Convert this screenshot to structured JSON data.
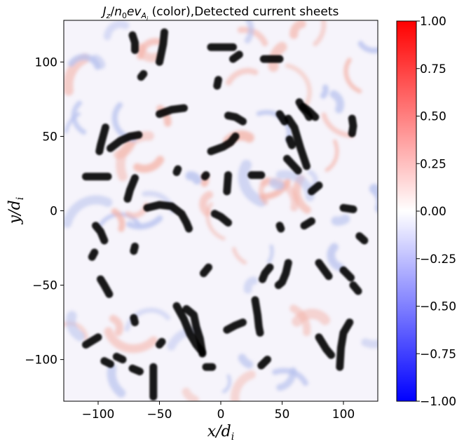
{
  "chart_data": {
    "type": "heatmap",
    "title": {
      "prefix_symbol": "J",
      "prefix_sub": "z",
      "slash": "/",
      "denominator_base": "n",
      "denominator_sub": "0",
      "denominator_mid": "ev",
      "denominator_sub2": "A",
      "denominator_sub3": "i",
      "suffix": " (color),Detected current sheets"
    },
    "xlabel": {
      "base": "x/d",
      "sub": "i"
    },
    "ylabel": {
      "base": "y/d",
      "sub": "i"
    },
    "xlim": [
      -128,
      128
    ],
    "ylim": [
      -128,
      128
    ],
    "xticks": [
      -100,
      -50,
      0,
      50,
      100
    ],
    "xtick_labels": [
      "−100",
      "−50",
      "0",
      "50",
      "100"
    ],
    "yticks": [
      -100,
      -50,
      0,
      50,
      100
    ],
    "ytick_labels": [
      "−100",
      "−50",
      "0",
      "50",
      "100"
    ],
    "colorbar": {
      "colormap": "bwr",
      "vmin": -1.0,
      "vmax": 1.0,
      "ticks": [
        1.0,
        0.75,
        0.5,
        0.25,
        0.0,
        -0.25,
        -0.5,
        -0.75,
        -1.0
      ],
      "tick_labels": [
        "1.00",
        "0.75",
        "0.50",
        "0.25",
        "0.00",
        "−0.25",
        "−0.50",
        "−0.75",
        "−1.00"
      ],
      "color_high": "#ff0000",
      "color_mid": "#ffffff",
      "color_low": "#0000ff"
    },
    "sheet_color": "#000000",
    "current_sheets": [
      [
        [
          -72,
          118
        ],
        [
          -70,
          113
        ],
        [
          -70,
          108
        ]
      ],
      [
        [
          -46,
          120
        ],
        [
          -47,
          112
        ],
        [
          -50,
          100
        ]
      ],
      [
        [
          -8,
          110
        ],
        [
          10,
          110
        ]
      ],
      [
        [
          15,
          105
        ],
        [
          10,
          102
        ]
      ],
      [
        [
          35,
          102
        ],
        [
          48,
          102
        ]
      ],
      [
        [
          -63,
          92
        ],
        [
          -65,
          90
        ]
      ],
      [
        [
          -2,
          88
        ],
        [
          -3,
          84
        ]
      ],
      [
        [
          -50,
          65
        ],
        [
          -40,
          68
        ],
        [
          -30,
          69
        ]
      ],
      [
        [
          -94,
          56
        ],
        [
          -96,
          50
        ],
        [
          -98,
          44
        ],
        [
          -99,
          40
        ]
      ],
      [
        [
          -90,
          42
        ],
        [
          -82,
          47
        ],
        [
          -74,
          50
        ],
        [
          -67,
          51
        ]
      ],
      [
        [
          6,
          64
        ],
        [
          12,
          63
        ],
        [
          18,
          60
        ]
      ],
      [
        [
          -8,
          40
        ],
        [
          2,
          43
        ],
        [
          8,
          46
        ],
        [
          12,
          50
        ]
      ],
      [
        [
          -110,
          23
        ],
        [
          -92,
          23
        ]
      ],
      [
        [
          -70,
          22
        ],
        [
          -74,
          14
        ],
        [
          -76,
          8
        ]
      ],
      [
        [
          -13,
          23
        ],
        [
          -12,
          24
        ]
      ],
      [
        [
          6,
          24
        ],
        [
          5,
          13
        ]
      ],
      [
        [
          25,
          24
        ],
        [
          33,
          24
        ]
      ],
      [
        [
          56,
          48
        ],
        [
          58,
          44
        ]
      ],
      [
        [
          64,
          73
        ],
        [
          66,
          70
        ],
        [
          70,
          66
        ],
        [
          72,
          63
        ]
      ],
      [
        [
          67,
          70
        ],
        [
          72,
          67
        ],
        [
          77,
          63
        ]
      ],
      [
        [
          55,
          62
        ],
        [
          60,
          56
        ],
        [
          65,
          42
        ],
        [
          70,
          30
        ]
      ],
      [
        [
          48,
          65
        ],
        [
          52,
          60
        ]
      ],
      [
        [
          54,
          35
        ],
        [
          63,
          27
        ]
      ],
      [
        [
          80,
          17
        ],
        [
          74,
          13
        ]
      ],
      [
        [
          107,
          62
        ],
        [
          108,
          57
        ],
        [
          107,
          52
        ]
      ],
      [
        [
          -35,
          28
        ],
        [
          -36,
          26
        ]
      ],
      [
        [
          -60,
          2
        ],
        [
          -50,
          4
        ],
        [
          -40,
          3
        ],
        [
          -32,
          -2
        ],
        [
          -28,
          -8
        ],
        [
          -26,
          -12
        ]
      ],
      [
        [
          -5,
          -2
        ],
        [
          0,
          -4
        ],
        [
          6,
          -8
        ]
      ],
      [
        [
          48,
          -10
        ],
        [
          49,
          -12
        ]
      ],
      [
        [
          68,
          -10
        ],
        [
          74,
          -7
        ]
      ],
      [
        [
          100,
          2
        ],
        [
          108,
          1
        ]
      ],
      [
        [
          117,
          -20
        ],
        [
          113,
          -17
        ]
      ],
      [
        [
          -102,
          -10
        ],
        [
          -98,
          -14
        ],
        [
          -95,
          -20
        ]
      ],
      [
        [
          -105,
          -31
        ],
        [
          -103,
          -28
        ]
      ],
      [
        [
          -70,
          -24
        ],
        [
          -71,
          -27
        ]
      ],
      [
        [
          -98,
          -46
        ],
        [
          -95,
          -50
        ],
        [
          -91,
          -56
        ]
      ],
      [
        [
          -10,
          -38
        ],
        [
          -14,
          -42
        ]
      ],
      [
        [
          40,
          -38
        ],
        [
          36,
          -42
        ],
        [
          34,
          -46
        ]
      ],
      [
        [
          55,
          -35
        ],
        [
          53,
          -42
        ],
        [
          50,
          -48
        ],
        [
          47,
          -50
        ]
      ],
      [
        [
          80,
          -35
        ],
        [
          88,
          -44
        ]
      ],
      [
        [
          100,
          -40
        ],
        [
          106,
          -45
        ]
      ],
      [
        [
          -28,
          -66
        ],
        [
          -22,
          -70
        ],
        [
          -20,
          -78
        ],
        [
          -17,
          -86
        ],
        [
          -15,
          -96
        ]
      ],
      [
        [
          -36,
          -64
        ],
        [
          -30,
          -73
        ],
        [
          -25,
          -83
        ],
        [
          -20,
          -90
        ],
        [
          -15,
          -95
        ]
      ],
      [
        [
          -12,
          -105
        ],
        [
          -7,
          -105
        ]
      ],
      [
        [
          -71,
          -72
        ],
        [
          -70,
          -75
        ]
      ],
      [
        [
          -80,
          -100
        ],
        [
          -85,
          -98
        ]
      ],
      [
        [
          -90,
          -103
        ],
        [
          -95,
          -101
        ]
      ],
      [
        [
          -110,
          -90
        ],
        [
          -100,
          -85
        ]
      ],
      [
        [
          -72,
          -106
        ],
        [
          -66,
          -108
        ]
      ],
      [
        [
          -55,
          -105
        ],
        [
          -55,
          -125
        ]
      ],
      [
        [
          -50,
          -90
        ],
        [
          -48,
          -88
        ]
      ],
      [
        [
          5,
          -80
        ],
        [
          12,
          -77
        ],
        [
          18,
          -75
        ]
      ],
      [
        [
          28,
          -60
        ],
        [
          30,
          -70
        ],
        [
          31,
          -78
        ],
        [
          32,
          -82
        ]
      ],
      [
        [
          38,
          -100
        ],
        [
          33,
          -104
        ]
      ],
      [
        [
          105,
          -75
        ],
        [
          100,
          -82
        ],
        [
          98,
          -92
        ],
        [
          97,
          -105
        ]
      ],
      [
        [
          80,
          -85
        ],
        [
          86,
          -93
        ],
        [
          90,
          -97
        ]
      ],
      [
        [
          108,
          -50
        ],
        [
          112,
          -54
        ]
      ]
    ]
  }
}
